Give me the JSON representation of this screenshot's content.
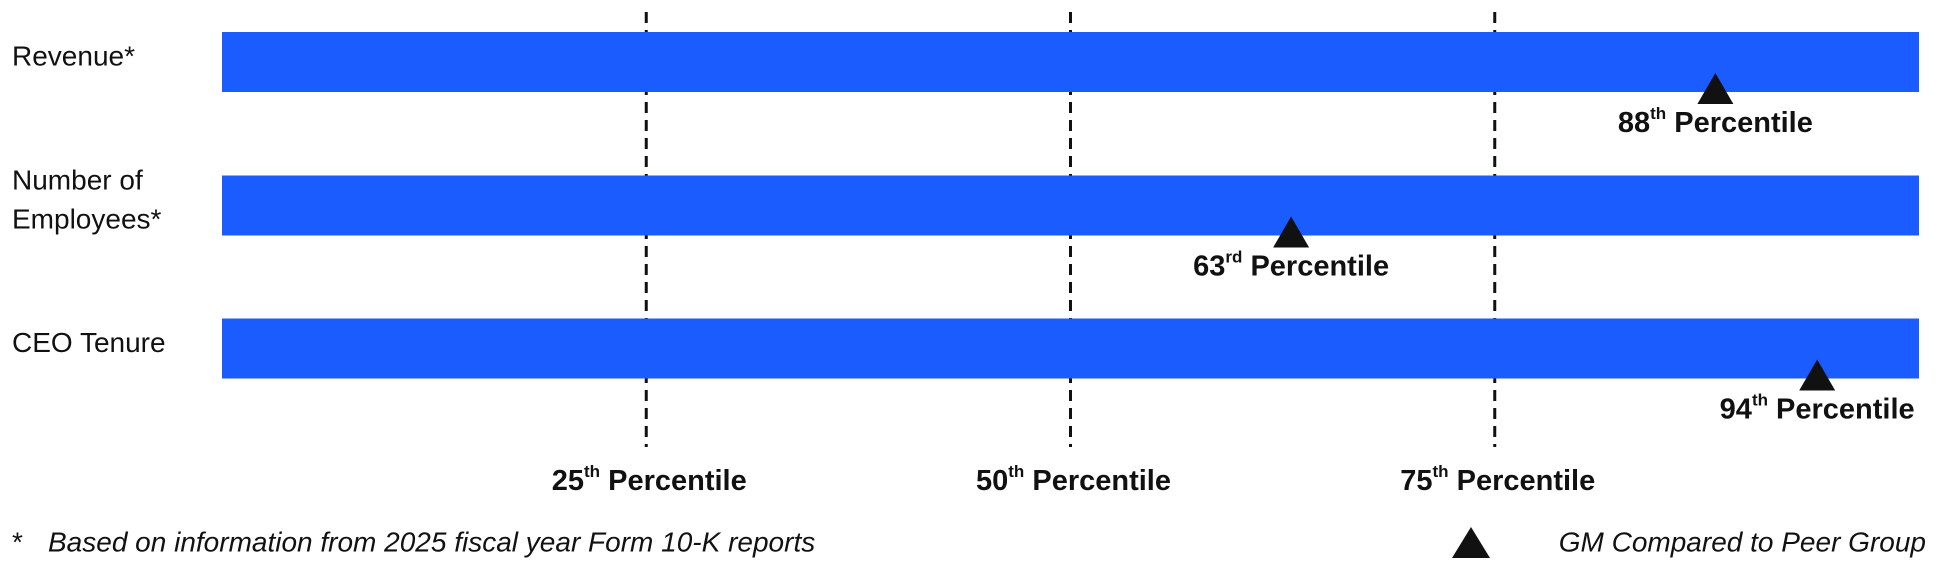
{
  "chart_data": {
    "type": "marker",
    "categories": [
      "Revenue*",
      "Number of Employees*",
      "CEO Tenure"
    ],
    "bar_color": "#1a5cff",
    "xlim": [
      0,
      100
    ],
    "xticks": [
      {
        "value": 25,
        "label": "25th Percentile"
      },
      {
        "value": 50,
        "label": "50th Percentile"
      },
      {
        "value": 75,
        "label": "75th Percentile"
      }
    ],
    "grid": true,
    "series": [
      {
        "name": "GM Compared to Peer Group",
        "color": "#111111",
        "values": [
          88,
          63,
          94
        ],
        "value_labels": [
          "88th Percentile",
          "63rd Percentile",
          "94th Percentile"
        ]
      }
    ],
    "footnote_marker": "*",
    "footnote": "Based on information from 2025 fiscal year Form 10-K reports",
    "legend": "bottom-right"
  }
}
